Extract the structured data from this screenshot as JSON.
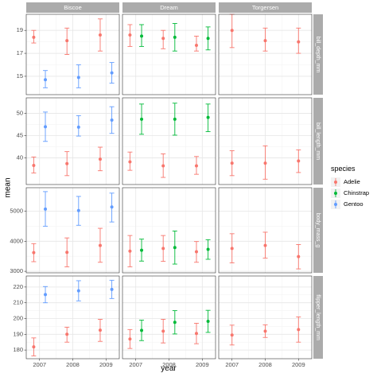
{
  "chart_data": {
    "type": "errorbar",
    "xlabel": "year",
    "ylabel": "mean",
    "legend": {
      "title": "species",
      "position": "right",
      "items": [
        {
          "name": "Adelie",
          "color": "#F8766D"
        },
        {
          "name": "Chinstrap",
          "color": "#00BA38"
        },
        {
          "name": "Gentoo",
          "color": "#619CFF"
        }
      ]
    },
    "columns": [
      "Biscoe",
      "Dream",
      "Torgersen"
    ],
    "x_ticks": [
      2007,
      2008,
      2009
    ],
    "x_tick_labels": [
      "2007",
      "2008",
      "2009"
    ],
    "xlim": [
      2006.6,
      2009.4
    ],
    "dodge": 0.35,
    "grid": true,
    "rows": [
      {
        "variable": "bill_depth_mm",
        "ylim": [
          13.4,
          20.4
        ],
        "yticks": [
          15,
          17,
          19
        ],
        "ytick_labels": [
          "15",
          "17",
          "19"
        ],
        "panels": {
          "Biscoe": [
            {
              "species": "Adelie",
              "year": 2007,
              "mean": 18.4,
              "ymin": 17.9,
              "ymax": 19.0
            },
            {
              "species": "Adelie",
              "year": 2008,
              "mean": 18.1,
              "ymin": 16.9,
              "ymax": 19.2
            },
            {
              "species": "Adelie",
              "year": 2009,
              "mean": 18.6,
              "ymin": 17.2,
              "ymax": 20.0
            },
            {
              "species": "Gentoo",
              "year": 2007,
              "mean": 14.7,
              "ymin": 14.0,
              "ymax": 15.5
            },
            {
              "species": "Gentoo",
              "year": 2008,
              "mean": 14.9,
              "ymin": 14.0,
              "ymax": 16.0
            },
            {
              "species": "Gentoo",
              "year": 2009,
              "mean": 15.3,
              "ymin": 14.4,
              "ymax": 16.2
            }
          ],
          "Dream": [
            {
              "species": "Adelie",
              "year": 2007,
              "mean": 18.6,
              "ymin": 17.6,
              "ymax": 19.5
            },
            {
              "species": "Adelie",
              "year": 2008,
              "mean": 18.3,
              "ymin": 17.4,
              "ymax": 19.0
            },
            {
              "species": "Adelie",
              "year": 2009,
              "mean": 17.7,
              "ymin": 17.2,
              "ymax": 18.5
            },
            {
              "species": "Chinstrap",
              "year": 2007,
              "mean": 18.5,
              "ymin": 17.6,
              "ymax": 19.5
            },
            {
              "species": "Chinstrap",
              "year": 2008,
              "mean": 18.4,
              "ymin": 17.2,
              "ymax": 19.6
            },
            {
              "species": "Chinstrap",
              "year": 2009,
              "mean": 18.3,
              "ymin": 17.3,
              "ymax": 19.3
            }
          ],
          "Torgersen": [
            {
              "species": "Adelie",
              "year": 2007,
              "mean": 19.0,
              "ymin": 17.5,
              "ymax": 20.4
            },
            {
              "species": "Adelie",
              "year": 2008,
              "mean": 18.1,
              "ymin": 17.2,
              "ymax": 19.2
            },
            {
              "species": "Adelie",
              "year": 2009,
              "mean": 18.0,
              "ymin": 17.0,
              "ymax": 19.2
            }
          ]
        }
      },
      {
        "variable": "bill_length_mm",
        "ylim": [
          34,
          53.5
        ],
        "yticks": [
          40,
          45,
          50
        ],
        "ytick_labels": [
          "40",
          "45",
          "50"
        ],
        "panels": {
          "Biscoe": [
            {
              "species": "Adelie",
              "year": 2007,
              "mean": 38.3,
              "ymin": 36.6,
              "ymax": 40.2
            },
            {
              "species": "Adelie",
              "year": 2008,
              "mean": 38.7,
              "ymin": 36.0,
              "ymax": 41.4
            },
            {
              "species": "Adelie",
              "year": 2009,
              "mean": 39.7,
              "ymin": 37.1,
              "ymax": 42.4
            },
            {
              "species": "Gentoo",
              "year": 2007,
              "mean": 47.0,
              "ymin": 43.7,
              "ymax": 50.3
            },
            {
              "species": "Gentoo",
              "year": 2008,
              "mean": 46.9,
              "ymin": 44.9,
              "ymax": 49.5
            },
            {
              "species": "Gentoo",
              "year": 2009,
              "mean": 48.5,
              "ymin": 45.5,
              "ymax": 51.5
            }
          ],
          "Dream": [
            {
              "species": "Adelie",
              "year": 2007,
              "mean": 39.1,
              "ymin": 37.2,
              "ymax": 41.3
            },
            {
              "species": "Adelie",
              "year": 2008,
              "mean": 38.2,
              "ymin": 35.6,
              "ymax": 40.9
            },
            {
              "species": "Adelie",
              "year": 2009,
              "mean": 38.2,
              "ymin": 36.3,
              "ymax": 40.3
            },
            {
              "species": "Chinstrap",
              "year": 2007,
              "mean": 48.7,
              "ymin": 45.3,
              "ymax": 52.1
            },
            {
              "species": "Chinstrap",
              "year": 2008,
              "mean": 48.7,
              "ymin": 45.1,
              "ymax": 52.3
            },
            {
              "species": "Chinstrap",
              "year": 2009,
              "mean": 49.1,
              "ymin": 45.9,
              "ymax": 52.1
            }
          ],
          "Torgersen": [
            {
              "species": "Adelie",
              "year": 2007,
              "mean": 38.8,
              "ymin": 36.0,
              "ymax": 41.6
            },
            {
              "species": "Adelie",
              "year": 2008,
              "mean": 38.8,
              "ymin": 35.2,
              "ymax": 42.7
            },
            {
              "species": "Adelie",
              "year": 2009,
              "mean": 39.3,
              "ymin": 36.7,
              "ymax": 41.8
            }
          ]
        }
      },
      {
        "variable": "body_mass_g",
        "ylim": [
          2950,
          5780
        ],
        "yticks": [
          3000,
          4000,
          5000
        ],
        "ytick_labels": [
          "3000",
          "4000",
          "5000"
        ],
        "panels": {
          "Biscoe": [
            {
              "species": "Adelie",
              "year": 2007,
              "mean": 3620,
              "ymin": 3320,
              "ymax": 3920
            },
            {
              "species": "Adelie",
              "year": 2008,
              "mean": 3630,
              "ymin": 3150,
              "ymax": 4110
            },
            {
              "species": "Adelie",
              "year": 2009,
              "mean": 3860,
              "ymin": 3300,
              "ymax": 4430
            },
            {
              "species": "Gentoo",
              "year": 2007,
              "mean": 5070,
              "ymin": 4500,
              "ymax": 5650
            },
            {
              "species": "Gentoo",
              "year": 2008,
              "mean": 5020,
              "ymin": 4530,
              "ymax": 5490
            },
            {
              "species": "Gentoo",
              "year": 2009,
              "mean": 5140,
              "ymin": 4640,
              "ymax": 5600
            }
          ],
          "Dream": [
            {
              "species": "Adelie",
              "year": 2007,
              "mean": 3670,
              "ymin": 3150,
              "ymax": 4190
            },
            {
              "species": "Adelie",
              "year": 2008,
              "mean": 3760,
              "ymin": 3330,
              "ymax": 4190
            },
            {
              "species": "Adelie",
              "year": 2009,
              "mean": 3650,
              "ymin": 3300,
              "ymax": 3990
            },
            {
              "species": "Chinstrap",
              "year": 2007,
              "mean": 3700,
              "ymin": 3340,
              "ymax": 4070
            },
            {
              "species": "Chinstrap",
              "year": 2008,
              "mean": 3790,
              "ymin": 3240,
              "ymax": 4340
            },
            {
              "species": "Chinstrap",
              "year": 2009,
              "mean": 3730,
              "ymin": 3400,
              "ymax": 4050
            }
          ],
          "Torgersen": [
            {
              "species": "Adelie",
              "year": 2007,
              "mean": 3760,
              "ymin": 3280,
              "ymax": 4250
            },
            {
              "species": "Adelie",
              "year": 2008,
              "mean": 3860,
              "ymin": 3440,
              "ymax": 4300
            },
            {
              "species": "Adelie",
              "year": 2009,
              "mean": 3490,
              "ymin": 3080,
              "ymax": 3890
            }
          ]
        }
      },
      {
        "variable": "flipper_length_mm",
        "ylim": [
          174.5,
          227
        ],
        "yticks": [
          180,
          190,
          200,
          210,
          220
        ],
        "ytick_labels": [
          "180",
          "190",
          "200",
          "210",
          "220"
        ],
        "panels": {
          "Biscoe": [
            {
              "species": "Adelie",
              "year": 2007,
              "mean": 182,
              "ymin": 176.3,
              "ymax": 187.7
            },
            {
              "species": "Adelie",
              "year": 2008,
              "mean": 190,
              "ymin": 185.0,
              "ymax": 194.5
            },
            {
              "species": "Adelie",
              "year": 2009,
              "mean": 192.6,
              "ymin": 185.5,
              "ymax": 199.5
            },
            {
              "species": "Gentoo",
              "year": 2007,
              "mean": 215.2,
              "ymin": 210.0,
              "ymax": 220.3
            },
            {
              "species": "Gentoo",
              "year": 2008,
              "mean": 217.6,
              "ymin": 211.2,
              "ymax": 224.0
            },
            {
              "species": "Gentoo",
              "year": 2009,
              "mean": 218.5,
              "ymin": 212.7,
              "ymax": 224.3
            }
          ],
          "Dream": [
            {
              "species": "Adelie",
              "year": 2007,
              "mean": 187,
              "ymin": 181.0,
              "ymax": 193.0
            },
            {
              "species": "Adelie",
              "year": 2008,
              "mean": 192,
              "ymin": 184.5,
              "ymax": 199.5
            },
            {
              "species": "Adelie",
              "year": 2009,
              "mean": 190.5,
              "ymin": 184.0,
              "ymax": 197.0
            },
            {
              "species": "Chinstrap",
              "year": 2007,
              "mean": 192.5,
              "ymin": 186.0,
              "ymax": 199.0
            },
            {
              "species": "Chinstrap",
              "year": 2008,
              "mean": 197.6,
              "ymin": 190.2,
              "ymax": 205.0
            },
            {
              "species": "Chinstrap",
              "year": 2009,
              "mean": 198.2,
              "ymin": 191.2,
              "ymax": 205.2
            }
          ],
          "Torgersen": [
            {
              "species": "Adelie",
              "year": 2007,
              "mean": 189.5,
              "ymin": 183.2,
              "ymax": 195.8
            },
            {
              "species": "Adelie",
              "year": 2008,
              "mean": 192,
              "ymin": 188.0,
              "ymax": 196.0
            },
            {
              "species": "Adelie",
              "year": 2009,
              "mean": 193,
              "ymin": 185.0,
              "ymax": 201.0
            }
          ]
        }
      }
    ]
  }
}
